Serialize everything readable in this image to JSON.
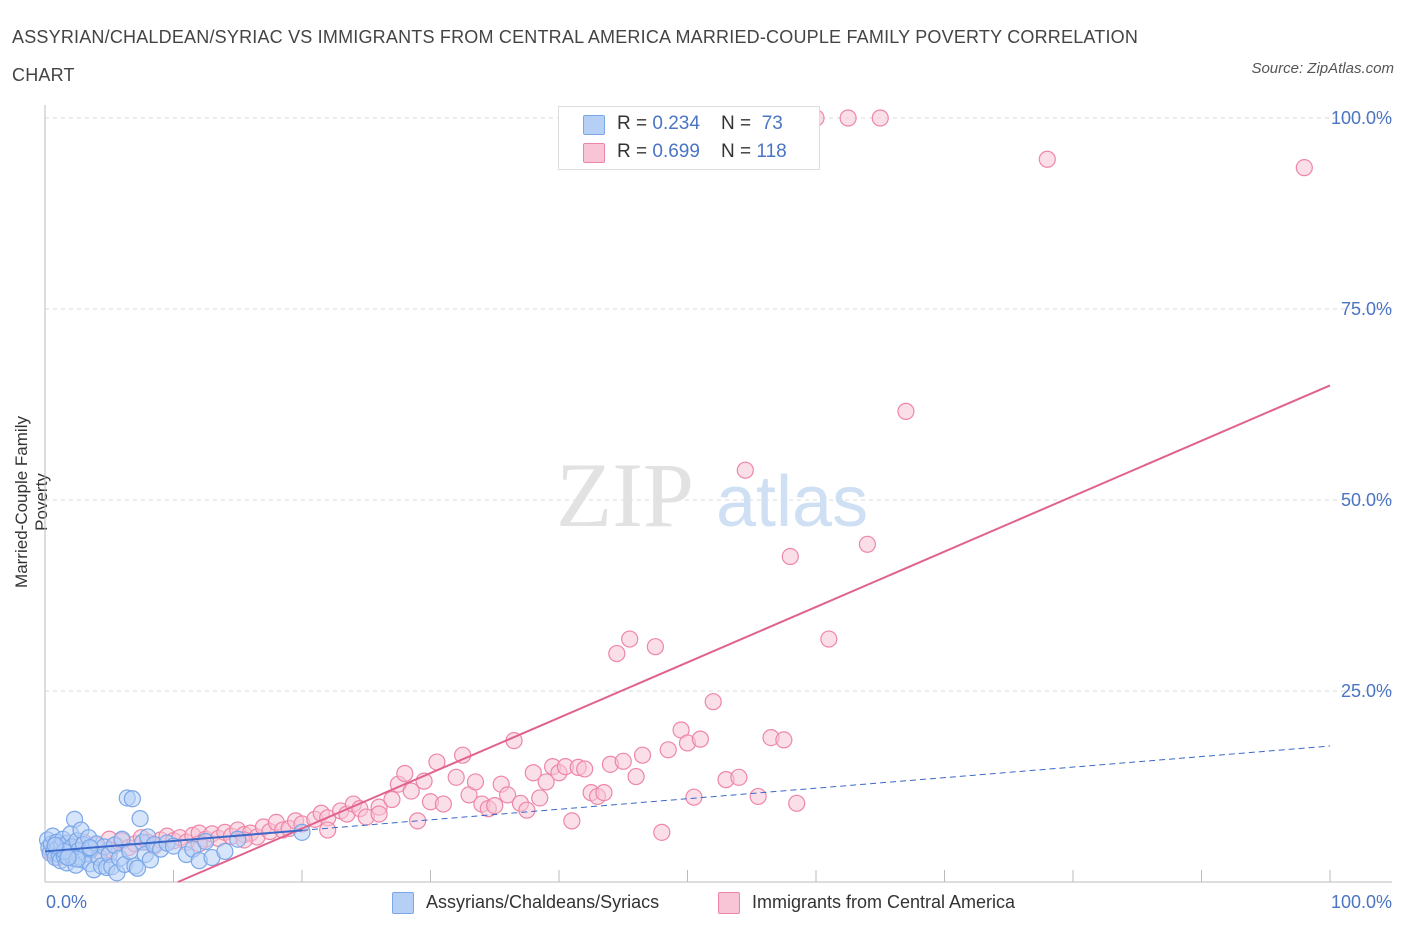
{
  "title": "ASSYRIAN/CHALDEAN/SYRIAC VS IMMIGRANTS FROM CENTRAL AMERICA MARRIED-COUPLE FAMILY POVERTY CORRELATION CHART",
  "source": "Source: ZipAtlas.com",
  "watermark": {
    "zip": "ZIP",
    "atlas": "atlas"
  },
  "legend": {
    "series1": {
      "r_label": "R = ",
      "r_value": "0.234",
      "n_label": "N = ",
      "n_value": "73"
    },
    "series2": {
      "r_label": "R = ",
      "r_value": "0.699",
      "n_label": "N = ",
      "n_value": "118"
    }
  },
  "colors": {
    "blue": "#7aa7e8",
    "blue_fill": "#b6d0f5",
    "blue_line": "#3b68c8",
    "pink": "#ee86a8",
    "pink_fill": "#f7c5d5",
    "pink_line": "#e0628f",
    "axis_text": "#4a74c4"
  },
  "chart_data": {
    "type": "scatter",
    "title": "ASSYRIAN/CHALDEAN/SYRIAC VS IMMIGRANTS FROM CENTRAL AMERICA MARRIED-COUPLE FAMILY POVERTY CORRELATION CHART",
    "xlabel": "",
    "ylabel": "Married-Couple Family Poverty",
    "xlim": [
      0,
      100
    ],
    "ylim": [
      0,
      100
    ],
    "x_tick_labels": [
      "0.0%",
      "100.0%"
    ],
    "y_tick_labels": [
      "100.0%",
      "75.0%",
      "50.0%",
      "25.0%"
    ],
    "y_ticks": [
      100,
      75,
      50,
      25
    ],
    "series": [
      {
        "name": "Assyrians/Chaldeans/Syriacs",
        "color": "#7aa7e8",
        "trend": {
          "x0": 0,
          "y0": 4.0,
          "x1": 100,
          "y1": 17.8,
          "solid_until": 20
        },
        "points": [
          [
            0.2,
            5.5
          ],
          [
            0.3,
            4.5
          ],
          [
            0.4,
            3.8
          ],
          [
            0.5,
            5
          ],
          [
            0.6,
            6
          ],
          [
            0.7,
            4
          ],
          [
            0.8,
            3.2
          ],
          [
            0.9,
            5.2
          ],
          [
            1.0,
            4.4
          ],
          [
            1.1,
            3.6
          ],
          [
            1.2,
            2.8
          ],
          [
            1.3,
            4.8
          ],
          [
            1.4,
            5.6
          ],
          [
            1.5,
            3.4
          ],
          [
            1.6,
            4.2
          ],
          [
            1.7,
            2.5
          ],
          [
            1.8,
            5.1
          ],
          [
            1.9,
            3.9
          ],
          [
            2.0,
            6.3
          ],
          [
            2.1,
            4.6
          ],
          [
            2.2,
            3.1
          ],
          [
            2.3,
            8.2
          ],
          [
            2.4,
            2.2
          ],
          [
            2.5,
            5.4
          ],
          [
            2.6,
            4.1
          ],
          [
            2.7,
            3.3
          ],
          [
            2.8,
            6.8
          ],
          [
            2.9,
            2.9
          ],
          [
            3.0,
            4.9
          ],
          [
            3.2,
            3.7
          ],
          [
            3.4,
            5.8
          ],
          [
            3.5,
            2.4
          ],
          [
            3.6,
            4.3
          ],
          [
            3.8,
            1.6
          ],
          [
            4.0,
            5.0
          ],
          [
            4.2,
            3.2
          ],
          [
            4.4,
            2.1
          ],
          [
            4.6,
            4.6
          ],
          [
            4.8,
            1.9
          ],
          [
            5.0,
            3.6
          ],
          [
            5.2,
            2.0
          ],
          [
            5.4,
            4.8
          ],
          [
            5.6,
            1.2
          ],
          [
            5.8,
            3.1
          ],
          [
            6.0,
            5.6
          ],
          [
            6.2,
            2.3
          ],
          [
            6.4,
            11.0
          ],
          [
            6.6,
            4.0
          ],
          [
            6.8,
            10.9
          ],
          [
            7.0,
            2.1
          ],
          [
            7.2,
            1.8
          ],
          [
            7.4,
            8.3
          ],
          [
            7.6,
            5.2
          ],
          [
            7.8,
            3.6
          ],
          [
            8.0,
            5.9
          ],
          [
            8.2,
            2.9
          ],
          [
            8.5,
            4.9
          ],
          [
            9.0,
            4.3
          ],
          [
            9.5,
            5.1
          ],
          [
            10.0,
            4.7
          ],
          [
            11.0,
            3.6
          ],
          [
            11.5,
            4.3
          ],
          [
            12.0,
            2.8
          ],
          [
            12.5,
            5.3
          ],
          [
            13.0,
            3.2
          ],
          [
            14.0,
            4.0
          ],
          [
            15.0,
            5.6
          ],
          [
            1.5,
            4.0
          ],
          [
            2.5,
            3.0
          ],
          [
            3.5,
            4.5
          ],
          [
            0.8,
            4.8
          ],
          [
            1.8,
            3.2
          ],
          [
            20.0,
            6.5
          ]
        ]
      },
      {
        "name": "Immigrants from Central America",
        "color": "#ee86a8",
        "trend": {
          "x0": 0,
          "y0": -7.5,
          "x1": 100,
          "y1": 65.0
        },
        "points": [
          [
            0.5,
            4
          ],
          [
            1.0,
            3.2
          ],
          [
            1.5,
            5
          ],
          [
            2.0,
            4.5
          ],
          [
            2.5,
            3.8
          ],
          [
            3.0,
            5.2
          ],
          [
            3.5,
            4.1
          ],
          [
            4.0,
            4.8
          ],
          [
            4.5,
            3.5
          ],
          [
            5.0,
            5.6
          ],
          [
            5.5,
            4.9
          ],
          [
            6.0,
            5.4
          ],
          [
            6.5,
            4.5
          ],
          [
            7.0,
            5.0
          ],
          [
            7.5,
            5.8
          ],
          [
            8.0,
            5.2
          ],
          [
            8.5,
            4.7
          ],
          [
            9.0,
            5.5
          ],
          [
            9.5,
            6.0
          ],
          [
            10.0,
            5.4
          ],
          [
            10.5,
            5.8
          ],
          [
            11.0,
            5.2
          ],
          [
            11.5,
            6.1
          ],
          [
            12.0,
            6.4
          ],
          [
            12.5,
            5.6
          ],
          [
            13.0,
            6.3
          ],
          [
            13.5,
            5.7
          ],
          [
            14.0,
            6.5
          ],
          [
            14.5,
            6.0
          ],
          [
            15.0,
            6.8
          ],
          [
            15.5,
            6.2
          ],
          [
            16.0,
            6.4
          ],
          [
            16.5,
            5.9
          ],
          [
            17.0,
            7.2
          ],
          [
            17.5,
            6.6
          ],
          [
            18.0,
            7.8
          ],
          [
            18.5,
            6.8
          ],
          [
            19.0,
            7.0
          ],
          [
            19.5,
            8.0
          ],
          [
            20.0,
            7.6
          ],
          [
            21.0,
            8.2
          ],
          [
            21.5,
            9.0
          ],
          [
            22.0,
            8.4
          ],
          [
            23.0,
            9.3
          ],
          [
            23.5,
            8.9
          ],
          [
            24.0,
            10.2
          ],
          [
            24.5,
            9.6
          ],
          [
            25.0,
            8.5
          ],
          [
            26.0,
            9.8
          ],
          [
            27.0,
            10.8
          ],
          [
            27.5,
            12.8
          ],
          [
            28.0,
            14.2
          ],
          [
            28.5,
            11.9
          ],
          [
            29.0,
            8.0
          ],
          [
            29.5,
            13.2
          ],
          [
            30.0,
            10.5
          ],
          [
            30.5,
            15.7
          ],
          [
            31.0,
            10.2
          ],
          [
            32.0,
            13.7
          ],
          [
            32.5,
            16.6
          ],
          [
            33.0,
            11.4
          ],
          [
            33.5,
            13.1
          ],
          [
            34.0,
            10.2
          ],
          [
            34.5,
            9.6
          ],
          [
            35.0,
            10.0
          ],
          [
            35.5,
            12.8
          ],
          [
            36.0,
            11.4
          ],
          [
            36.5,
            18.5
          ],
          [
            37.0,
            10.3
          ],
          [
            37.5,
            9.4
          ],
          [
            38.0,
            14.3
          ],
          [
            38.5,
            11.0
          ],
          [
            39.0,
            13.1
          ],
          [
            39.5,
            15.1
          ],
          [
            40.0,
            14.3
          ],
          [
            40.5,
            15.1
          ],
          [
            41.0,
            8.0
          ],
          [
            41.5,
            15.0
          ],
          [
            42.0,
            14.8
          ],
          [
            42.5,
            11.7
          ],
          [
            43.0,
            11.2
          ],
          [
            43.5,
            11.7
          ],
          [
            44.0,
            15.4
          ],
          [
            44.5,
            29.9
          ],
          [
            45.0,
            15.8
          ],
          [
            45.5,
            31.8
          ],
          [
            46.0,
            13.8
          ],
          [
            46.5,
            16.6
          ],
          [
            47.5,
            30.8
          ],
          [
            48.0,
            6.5
          ],
          [
            48.5,
            17.3
          ],
          [
            49.5,
            19.9
          ],
          [
            50.0,
            18.2
          ],
          [
            50.5,
            11.1
          ],
          [
            51.0,
            18.7
          ],
          [
            52.0,
            23.6
          ],
          [
            53.0,
            13.4
          ],
          [
            54.0,
            13.7
          ],
          [
            54.5,
            53.9
          ],
          [
            55.5,
            11.2
          ],
          [
            56.5,
            18.9
          ],
          [
            57.5,
            18.6
          ],
          [
            58.0,
            42.6
          ],
          [
            58.5,
            10.3
          ],
          [
            60.0,
            100
          ],
          [
            62.5,
            100
          ],
          [
            65.0,
            100
          ],
          [
            61.0,
            31.8
          ],
          [
            64.0,
            44.2
          ],
          [
            67.0,
            61.6
          ],
          [
            78.0,
            94.6
          ],
          [
            98.0,
            93.5
          ],
          [
            15.5,
            5.5
          ],
          [
            22.0,
            6.8
          ],
          [
            26.0,
            8.9
          ],
          [
            12.0,
            5.0
          ],
          [
            5.0,
            4.2
          ]
        ]
      }
    ]
  },
  "bottom_legend": [
    "Assyrians/Chaldeans/Syriacs",
    "Immigrants from Central America"
  ]
}
